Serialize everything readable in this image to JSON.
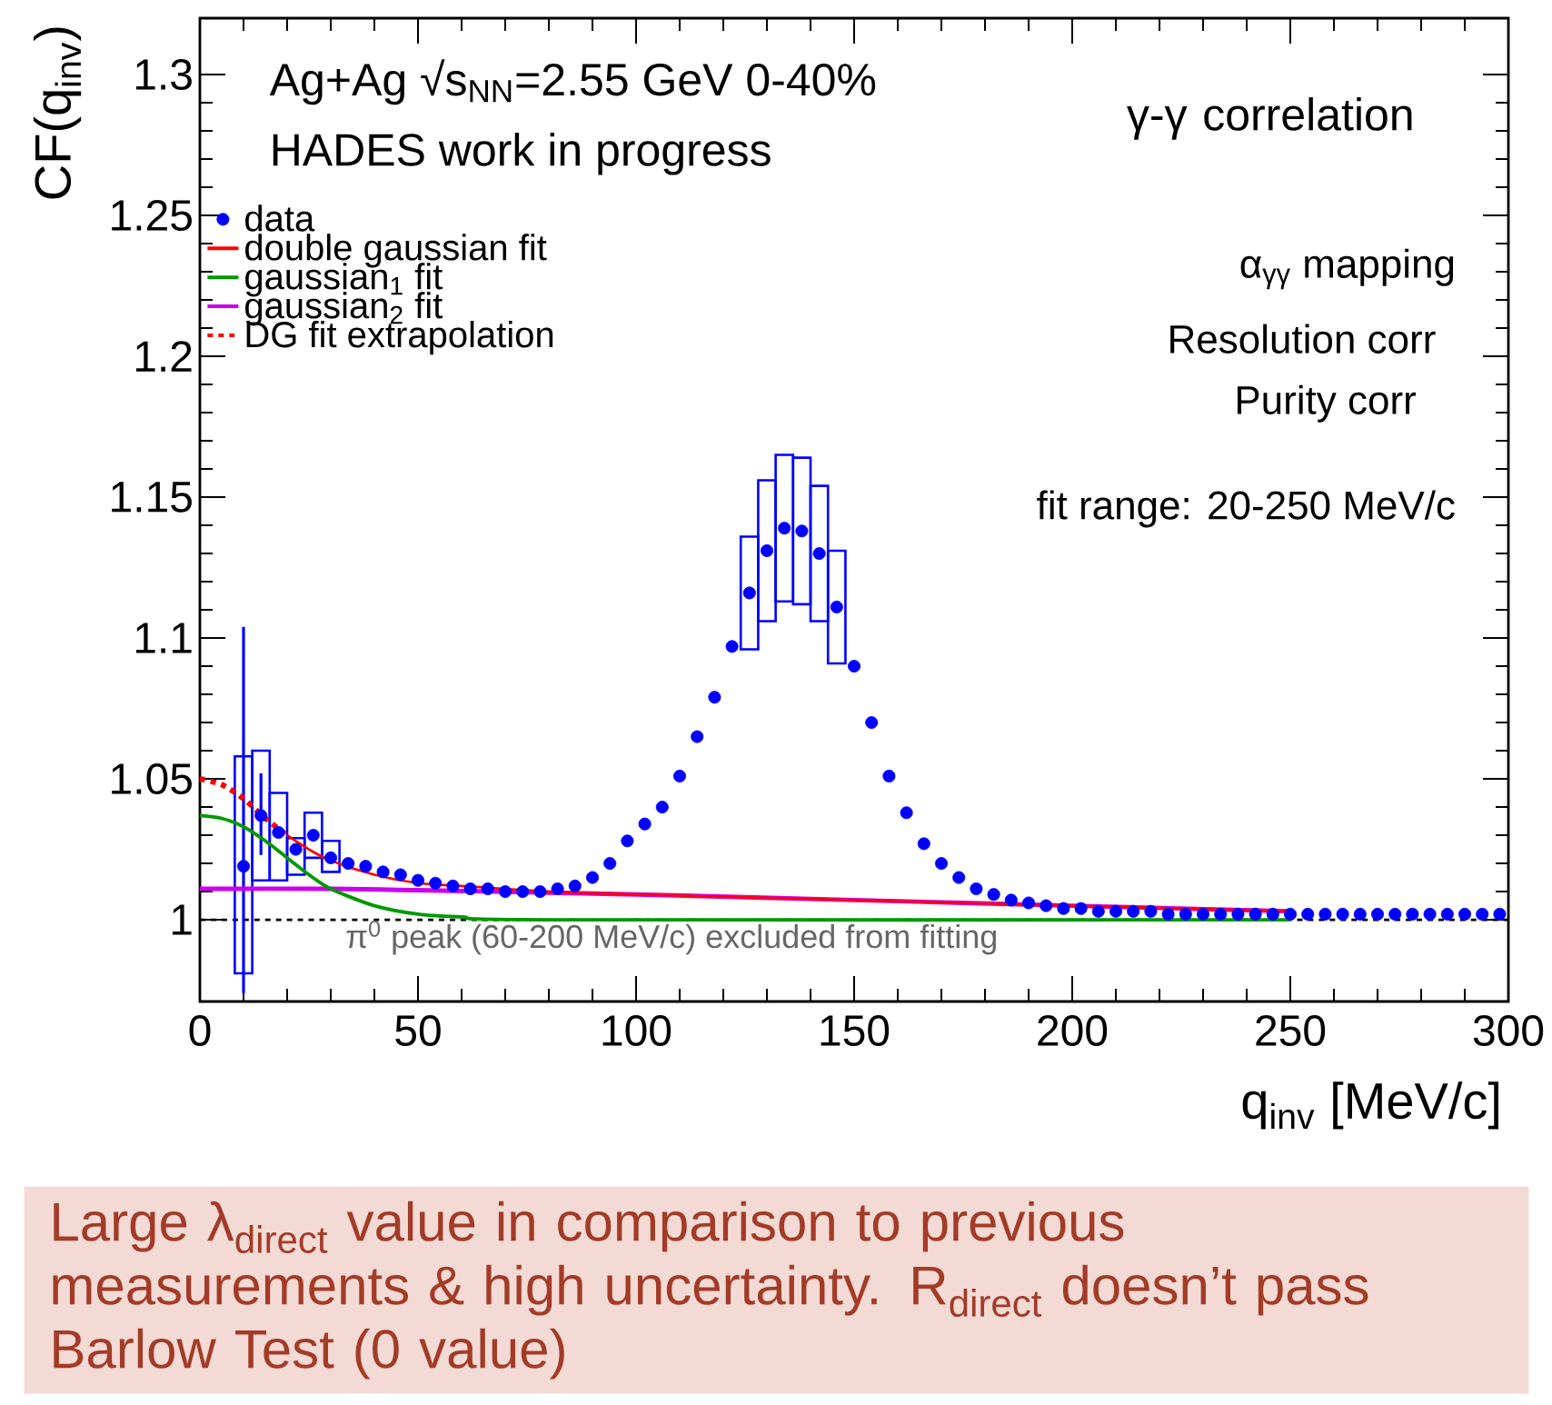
{
  "chart_data": {
    "type": "scatter",
    "xlabel": "q$_{inv}$ [MeV/c]",
    "ylabel": "CF(q$_{inv}$)",
    "xlim": [
      0,
      300
    ],
    "ylim": [
      0.971,
      1.32
    ],
    "xticks": [
      0,
      50,
      100,
      150,
      200,
      250,
      300
    ],
    "yticks": [
      1,
      1.05,
      1.1,
      1.15,
      1.2,
      1.25,
      1.3
    ],
    "legend": "top left",
    "series": [
      {
        "name": "data",
        "color": "#0000ff",
        "marker": "circle",
        "x": [
          10,
          14,
          18,
          22,
          26,
          30,
          34,
          38,
          42,
          46,
          50,
          54,
          58,
          62,
          66,
          70,
          74,
          78,
          82,
          86,
          90,
          94,
          98,
          102,
          106,
          110,
          114,
          118,
          122,
          126,
          130,
          134,
          138,
          142,
          146,
          150,
          154,
          158,
          162,
          166,
          170,
          174,
          178,
          182,
          186,
          190,
          194,
          198,
          202,
          206,
          210,
          214,
          218,
          222,
          226,
          230,
          234,
          238,
          242,
          246,
          250,
          254,
          258,
          262,
          266,
          270,
          274,
          278,
          282,
          286,
          290,
          294,
          298
        ],
        "values": [
          1.019,
          1.037,
          1.031,
          1.025,
          1.03,
          1.022,
          1.02,
          1.019,
          1.017,
          1.016,
          1.014,
          1.013,
          1.012,
          1.011,
          1.011,
          1.01,
          1.01,
          1.01,
          1.011,
          1.012,
          1.015,
          1.02,
          1.028,
          1.034,
          1.04,
          1.051,
          1.065,
          1.079,
          1.097,
          1.116,
          1.131,
          1.139,
          1.138,
          1.13,
          1.111,
          1.09,
          1.07,
          1.051,
          1.038,
          1.027,
          1.02,
          1.015,
          1.011,
          1.009,
          1.007,
          1.006,
          1.005,
          1.004,
          1.004,
          1.003,
          1.003,
          1.003,
          1.003,
          1.002,
          1.002,
          1.002,
          1.002,
          1.002,
          1.002,
          1.002,
          1.002,
          1.002,
          1.002,
          1.002,
          1.002,
          1.002,
          1.002,
          1.002,
          1.002,
          1.002,
          1.002,
          1.002,
          1.002
        ],
        "errors": [
          [
            0.974,
            1.104
          ],
          [
            1.023,
            1.052
          ],
          null,
          null,
          null,
          null,
          null,
          null,
          null,
          null,
          null,
          null,
          null,
          null,
          null,
          null,
          null,
          null,
          null,
          null,
          null,
          null,
          null,
          null,
          null,
          null,
          null,
          null,
          null,
          null,
          null,
          null,
          null,
          null,
          null,
          null,
          null,
          null,
          null,
          null,
          null,
          null,
          null,
          null,
          null,
          null,
          null,
          null,
          null,
          null,
          null,
          null,
          null,
          null,
          null,
          null,
          null,
          null,
          null,
          null,
          null,
          null,
          null,
          null,
          null,
          null,
          null,
          null,
          null,
          null,
          null,
          null,
          null
        ]
      },
      {
        "type": "bar",
        "color": "#0000ff",
        "x": [
          10,
          14,
          18,
          22,
          26,
          30,
          126,
          130,
          134,
          138,
          142,
          146
        ],
        "base": [
          0.981,
          1.014,
          1.014,
          1.016,
          1.022,
          1.017,
          1.096,
          1.106,
          1.113,
          1.112,
          1.106,
          1.091
        ],
        "values": [
          0.077,
          0.046,
          0.031,
          0.013,
          0.016,
          0.011,
          0.04,
          0.05,
          0.052,
          0.052,
          0.048,
          0.04
        ]
      },
      {
        "name": "double gaussian fit",
        "type": "line",
        "color": "#ff0000",
        "marker": "none",
        "line_style": "solid",
        "x": [
          20,
          25,
          30,
          40,
          50,
          60,
          80,
          100,
          150,
          200,
          250
        ],
        "values": [
          1.03,
          1.025,
          1.021,
          1.016,
          1.013,
          1.012,
          1.01,
          1.009,
          1.007,
          1.005,
          1.003
        ]
      },
      {
        "name": "gaussian$_{1}$ fit",
        "type": "line",
        "color": "#009900",
        "marker": "none",
        "line_style": "solid",
        "x": [
          0,
          5,
          10,
          15,
          20,
          25,
          30,
          40,
          50,
          60,
          80,
          250
        ],
        "values": [
          1.037,
          1.036,
          1.033,
          1.028,
          1.022,
          1.016,
          1.011,
          1.005,
          1.002,
          1.001,
          1.0,
          1.0
        ]
      },
      {
        "name": "gaussian$_{2}$ fit",
        "type": "line",
        "color": "#cc00ee",
        "marker": "none",
        "line_style": "solid",
        "x": [
          0,
          30,
          50,
          100,
          150,
          200,
          250
        ],
        "values": [
          1.011,
          1.011,
          1.0105,
          1.009,
          1.007,
          1.005,
          1.003
        ]
      },
      {
        "name": "DG fit extrapolation",
        "type": "line",
        "color": "#ff0000",
        "marker": "none",
        "line_style": "dashed",
        "x": [
          0,
          5,
          10,
          15,
          20
        ],
        "values": [
          1.05,
          1.048,
          1.043,
          1.036,
          1.03
        ]
      }
    ],
    "ref_lines": [
      {
        "axis": "y",
        "value": 1,
        "color": "#000000",
        "line_style": "dashed"
      }
    ],
    "annotations": [
      "Ag+Ag √s$_{NN}$=2.55 GeV 0-40%",
      "HADES work in progress",
      "γ-γ correlation",
      "α$_{γγ}$ mapping",
      "Resolution corr",
      "Purity corr",
      "fit range: 20-250 MeV/c",
      "π$^{0}$ peak (60-200 MeV/c) excluded from fitting",
      "Large λ$_{direct}$ value in comparison to previous measurements & high uncertainty. R$_{direct}$ doesn’t pass Barlow Test (0 value)"
    ]
  }
}
